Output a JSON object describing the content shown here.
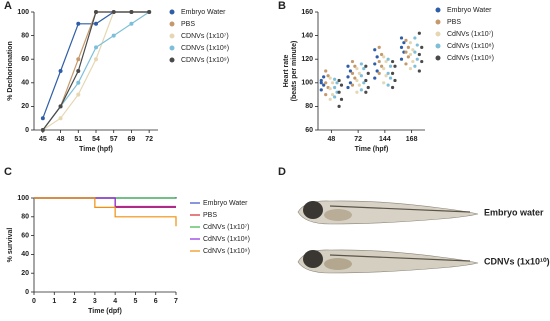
{
  "chart_data": [
    {
      "type": "line",
      "panel": "A",
      "xlabel": "Time (hpf)",
      "ylabel": "% Dechorionation",
      "categories": [
        "45",
        "48",
        "51",
        "54",
        "57",
        "69",
        "72"
      ],
      "ylim": [
        0,
        100
      ],
      "yticks": [
        0,
        20,
        40,
        60,
        80,
        100
      ],
      "series": [
        {
          "name": "Embryo Water",
          "color": "#2f5ea8",
          "values": [
            10,
            50,
            90,
            90,
            100,
            100,
            100
          ]
        },
        {
          "name": "PBS",
          "color": "#c49a6c",
          "values": [
            0,
            20,
            60,
            100,
            100,
            100,
            100
          ]
        },
        {
          "name": "CDNVs (1x10⁷)",
          "color": "#e6d7b3",
          "values": [
            0,
            10,
            30,
            60,
            100,
            100,
            100
          ]
        },
        {
          "name": "CDNVs (1x10⁸)",
          "color": "#7dbfd9",
          "values": [
            0,
            20,
            40,
            70,
            80,
            90,
            100
          ]
        },
        {
          "name": "CDNVs (1x10⁹)",
          "color": "#4a4a4a",
          "values": [
            0,
            20,
            50,
            100,
            100,
            100,
            100
          ]
        }
      ]
    },
    {
      "type": "dots",
      "panel": "B",
      "xlabel": "Time (hpf)",
      "ylabel": [
        "Heart rate",
        "(beats per minute)"
      ],
      "categories": [
        "48",
        "72",
        "144",
        "168"
      ],
      "ylim": [
        60,
        160
      ],
      "yticks": [
        60,
        80,
        100,
        120,
        140,
        160
      ],
      "series": [
        {
          "name": "Embryo Water",
          "color": "#2f5ea8",
          "values": [
            [
              94,
              98,
              102,
              105,
              100
            ],
            [
              96,
              100,
              105,
              110,
              114
            ],
            [
              104,
              110,
              116,
              122,
              128
            ],
            [
              120,
              126,
              130,
              134,
              138
            ]
          ]
        },
        {
          "name": "PBS",
          "color": "#c49a6c",
          "values": [
            [
              90,
              96,
              100,
              106,
              110
            ],
            [
              98,
              104,
              108,
              114,
              118
            ],
            [
              108,
              114,
              118,
              124,
              130
            ],
            [
              116,
              122,
              126,
              130,
              136
            ]
          ]
        },
        {
          "name": "CdNVs (1x10⁷)",
          "color": "#e6d7b3",
          "values": [
            [
              86,
              90,
              95,
              100,
              104
            ],
            [
              92,
              98,
              102,
              108,
              112
            ],
            [
              100,
              106,
              112,
              118,
              122
            ],
            [
              112,
              118,
              124,
              128,
              134
            ]
          ]
        },
        {
          "name": "CdNVs (1x10⁸)",
          "color": "#7dbfd9",
          "values": [
            [
              88,
              92,
              96,
              100,
              103
            ],
            [
              94,
              100,
              106,
              112,
              116
            ],
            [
              98,
              104,
              108,
              114,
              120
            ],
            [
              114,
              120,
              126,
              132,
              138
            ]
          ]
        },
        {
          "name": "CdNVs (1x10⁹)",
          "color": "#4a4a4a",
          "values": [
            [
              80,
              86,
              92,
              98,
              102
            ],
            [
              92,
              96,
              102,
              108,
              114
            ],
            [
              96,
              102,
              108,
              114,
              118
            ],
            [
              110,
              118,
              124,
              130,
              142
            ]
          ]
        }
      ]
    },
    {
      "type": "step",
      "panel": "C",
      "xlabel": "Time (dpf)",
      "ylabel": "% survival",
      "xlim": [
        0,
        7
      ],
      "xticks": [
        0,
        1,
        2,
        3,
        4,
        5,
        6,
        7
      ],
      "ylim": [
        0,
        100
      ],
      "yticks": [
        0,
        20,
        40,
        60,
        80,
        100
      ],
      "series": [
        {
          "name": "Embryo Water",
          "color": "#3a4fc8",
          "x": [
            0,
            7,
            7
          ],
          "values": [
            100,
            100,
            101
          ]
        },
        {
          "name": "PBS",
          "color": "#d42a2a",
          "x": [
            0,
            4,
            4,
            7
          ],
          "values": [
            100,
            100,
            90,
            90
          ]
        },
        {
          "name": "CdNVs (1x10⁷)",
          "color": "#3fb34a",
          "x": [
            0,
            7
          ],
          "values": [
            100,
            100
          ]
        },
        {
          "name": "CdNVs (1x10⁸)",
          "color": "#8a2be2",
          "x": [
            0,
            4,
            4,
            7
          ],
          "values": [
            100,
            100,
            91,
            91
          ]
        },
        {
          "name": "CdNVs (1x10⁹)",
          "color": "#f0900c",
          "x": [
            0,
            3,
            3,
            4,
            4,
            7,
            7
          ],
          "values": [
            100,
            100,
            90,
            90,
            80,
            80,
            70
          ]
        }
      ]
    }
  ],
  "panel_d": {
    "panel": "D",
    "labels": [
      "Embryo water",
      "CDNVs (1x10¹⁰)"
    ]
  }
}
